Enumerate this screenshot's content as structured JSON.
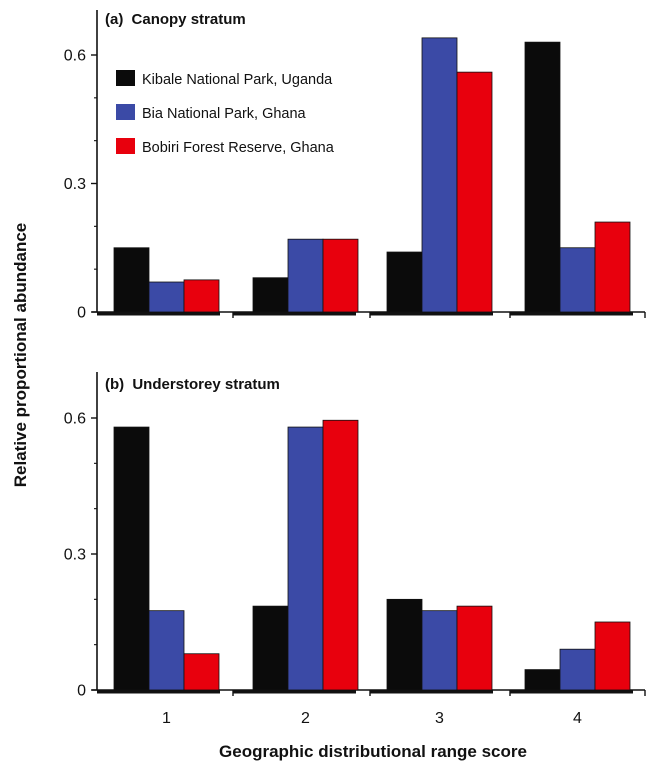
{
  "figure": {
    "ylabel": "Relative proportional abundance",
    "xlabel": "Geographic distributional range score"
  },
  "legend": [
    {
      "name": "Kibale National Park, Uganda",
      "color": "#0b0b0b"
    },
    {
      "name": "Bia National Park, Ghana",
      "color": "#3b4aa6"
    },
    {
      "name": "Bobiri Forest Reserve, Ghana",
      "color": "#e8000d"
    }
  ],
  "chart_data": [
    {
      "type": "bar",
      "panel_label": "(a)",
      "title": "Canopy stratum",
      "categories": [
        "1",
        "2",
        "3",
        "4"
      ],
      "yticks": [
        "0",
        "0.3",
        "0.6"
      ],
      "ylim": [
        0,
        0.68
      ],
      "series": [
        {
          "name": "Kibale National Park, Uganda",
          "values": [
            0.15,
            0.08,
            0.14,
            0.63
          ]
        },
        {
          "name": "Bia National Park, Ghana",
          "values": [
            0.07,
            0.17,
            0.64,
            0.15
          ]
        },
        {
          "name": "Bobiri Forest Reserve, Ghana",
          "values": [
            0.075,
            0.17,
            0.56,
            0.21
          ]
        }
      ]
    },
    {
      "type": "bar",
      "panel_label": "(b)",
      "title": "Understorey stratum",
      "categories": [
        "1",
        "2",
        "3",
        "4"
      ],
      "yticks": [
        "0",
        "0.3",
        "0.6"
      ],
      "ylim": [
        0,
        0.68
      ],
      "series": [
        {
          "name": "Kibale National Park, Uganda",
          "values": [
            0.58,
            0.185,
            0.2,
            0.045
          ]
        },
        {
          "name": "Bia National Park, Ghana",
          "values": [
            0.175,
            0.58,
            0.175,
            0.09
          ]
        },
        {
          "name": "Bobiri Forest Reserve, Ghana",
          "values": [
            0.08,
            0.595,
            0.185,
            0.15
          ]
        }
      ]
    }
  ]
}
